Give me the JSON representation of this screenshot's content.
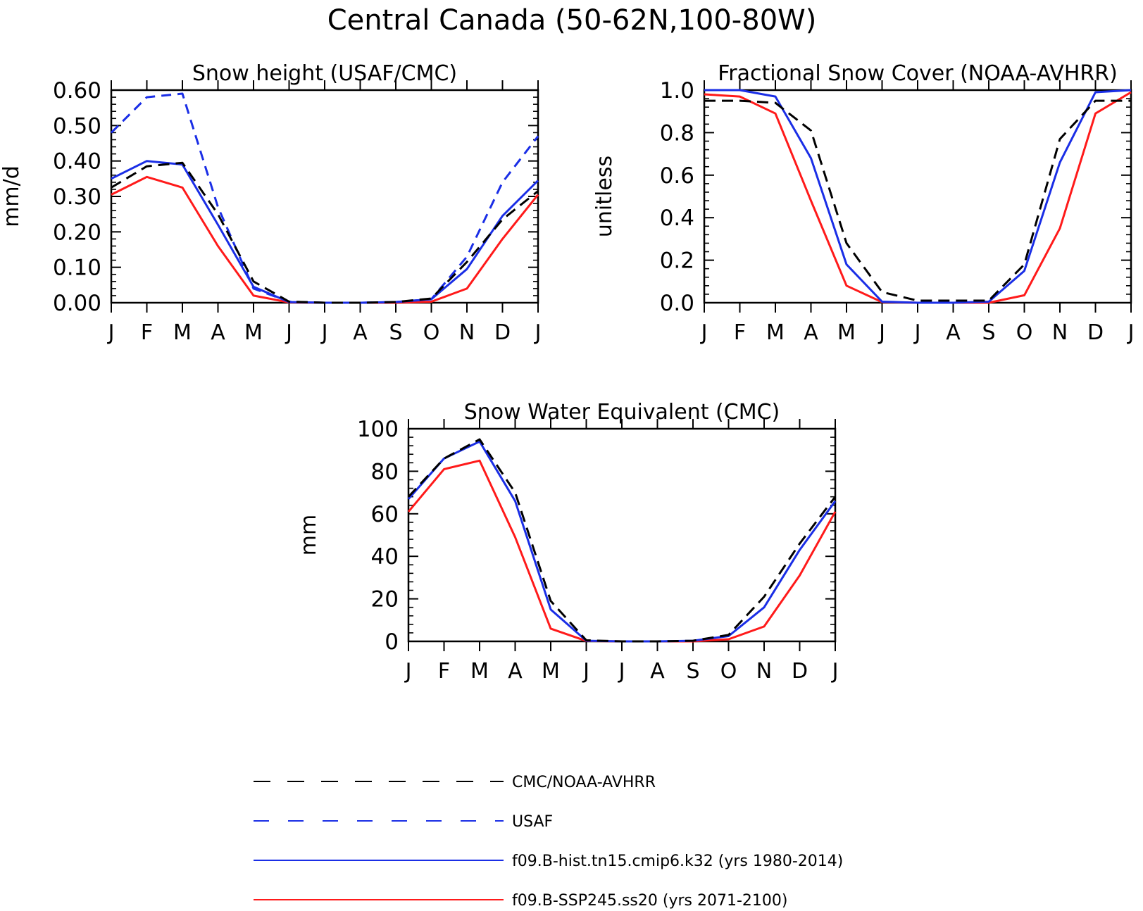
{
  "title": "Central Canada (50-62N,100-80W)",
  "month_labels": [
    "J",
    "F",
    "M",
    "A",
    "M",
    "J",
    "J",
    "A",
    "S",
    "O",
    "N",
    "D",
    "J"
  ],
  "colors": {
    "obs": "#000000",
    "usaf": "#1a2ee6",
    "hist": "#1a2ee6",
    "ssp": "#ff1a1a"
  },
  "legend": [
    {
      "key": "obs",
      "label": "CMC/NOAA-AVHRR",
      "color": "#000000",
      "dashed": true,
      "dash_style": "long"
    },
    {
      "key": "usaf",
      "label": "USAF",
      "color": "#1a2ee6",
      "dashed": true,
      "dash_style": "short"
    },
    {
      "key": "hist",
      "label": "f09.B-hist.tn15.cmip6.k32 (yrs 1980-2014)",
      "color": "#1a2ee6",
      "dashed": false
    },
    {
      "key": "ssp",
      "label": "f09.B-SSP245.ss20 (yrs 2071-2100)",
      "color": "#ff1a1a",
      "dashed": false
    }
  ],
  "chart_data": [
    {
      "id": "snow-height",
      "type": "line",
      "title": "Snow height (USAF/CMC)",
      "ylabel": "mm/d",
      "xlabel": "",
      "ylim": [
        0,
        0.6
      ],
      "yticks": [
        0,
        0.1,
        0.2,
        0.3,
        0.4,
        0.5,
        0.6
      ],
      "yticklabels": [
        "0.00",
        "0.10",
        "0.20",
        "0.30",
        "0.40",
        "0.50",
        "0.60"
      ],
      "categories": [
        "J",
        "F",
        "M",
        "A",
        "M",
        "J",
        "J",
        "A",
        "S",
        "O",
        "N",
        "D",
        "J"
      ],
      "series": [
        {
          "name": "CMC/NOAA-AVHRR",
          "key": "obs",
          "values": [
            0.325,
            0.385,
            0.395,
            0.25,
            0.06,
            0.003,
            0.0,
            0.0,
            0.002,
            0.012,
            0.115,
            0.235,
            0.315
          ]
        },
        {
          "name": "USAF",
          "key": "usaf",
          "values": [
            0.48,
            0.58,
            0.59,
            0.27,
            0.04,
            0.003,
            0.0,
            0.0,
            0.002,
            0.01,
            0.13,
            0.34,
            0.47
          ]
        },
        {
          "name": "f09.B-hist.tn15.cmip6.k32 (yrs 1980-2014)",
          "key": "hist",
          "values": [
            0.35,
            0.4,
            0.39,
            0.22,
            0.045,
            0.002,
            0.0,
            0.0,
            0.002,
            0.01,
            0.095,
            0.245,
            0.345
          ]
        },
        {
          "name": "f09.B-SSP245.ss20 (yrs 2071-2100)",
          "key": "ssp",
          "values": [
            0.305,
            0.355,
            0.325,
            0.16,
            0.02,
            0.001,
            0.0,
            0.0,
            0.0,
            0.003,
            0.04,
            0.18,
            0.305
          ]
        }
      ]
    },
    {
      "id": "fractional-snow-cover",
      "type": "line",
      "title": "Fractional Snow Cover (NOAA-AVHRR)",
      "ylabel": "unitless",
      "xlabel": "",
      "ylim": [
        0,
        1
      ],
      "yticks": [
        0,
        0.2,
        0.4,
        0.6,
        0.8,
        1.0
      ],
      "yticklabels": [
        "0.0",
        "0.2",
        "0.4",
        "0.6",
        "0.8",
        "1.0"
      ],
      "categories": [
        "J",
        "F",
        "M",
        "A",
        "M",
        "J",
        "J",
        "A",
        "S",
        "O",
        "N",
        "D",
        "J"
      ],
      "series": [
        {
          "name": "CMC/NOAA-AVHRR",
          "key": "obs",
          "values": [
            0.95,
            0.95,
            0.94,
            0.81,
            0.28,
            0.05,
            0.01,
            0.01,
            0.01,
            0.18,
            0.77,
            0.95,
            0.95
          ]
        },
        {
          "name": "f09.B-hist.tn15.cmip6.k32 (yrs 1980-2014)",
          "key": "hist",
          "values": [
            1.0,
            1.0,
            0.97,
            0.68,
            0.18,
            0.005,
            0.0,
            0.0,
            0.005,
            0.15,
            0.66,
            0.99,
            1.0
          ]
        },
        {
          "name": "f09.B-SSP245.ss20 (yrs 2071-2100)",
          "key": "ssp",
          "values": [
            0.98,
            0.97,
            0.89,
            0.48,
            0.08,
            0.003,
            0.0,
            0.0,
            0.0,
            0.035,
            0.35,
            0.89,
            0.99
          ]
        }
      ]
    },
    {
      "id": "snow-water-equivalent",
      "type": "line",
      "title": "Snow Water Equivalent (CMC)",
      "ylabel": "mm",
      "xlabel": "",
      "ylim": [
        0,
        100
      ],
      "yticks": [
        0,
        20,
        40,
        60,
        80,
        100
      ],
      "yticklabels": [
        "0",
        "20",
        "40",
        "60",
        "80",
        "100"
      ],
      "categories": [
        "J",
        "F",
        "M",
        "A",
        "M",
        "J",
        "J",
        "A",
        "S",
        "O",
        "N",
        "D",
        "J"
      ],
      "series": [
        {
          "name": "CMC/NOAA-AVHRR",
          "key": "obs",
          "values": [
            68,
            86,
            95,
            70,
            19,
            0.5,
            0,
            0,
            0.3,
            3,
            21,
            46,
            68
          ]
        },
        {
          "name": "f09.B-hist.tn15.cmip6.k32 (yrs 1980-2014)",
          "key": "hist",
          "values": [
            67,
            86,
            94,
            66,
            15,
            0.3,
            0,
            0,
            0.3,
            2.5,
            16,
            43,
            66
          ]
        },
        {
          "name": "f09.B-SSP245.ss20 (yrs 2071-2100)",
          "key": "ssp",
          "values": [
            61,
            81,
            85,
            49,
            6,
            0.2,
            0,
            0,
            0,
            1,
            7,
            31,
            61
          ]
        }
      ]
    }
  ]
}
